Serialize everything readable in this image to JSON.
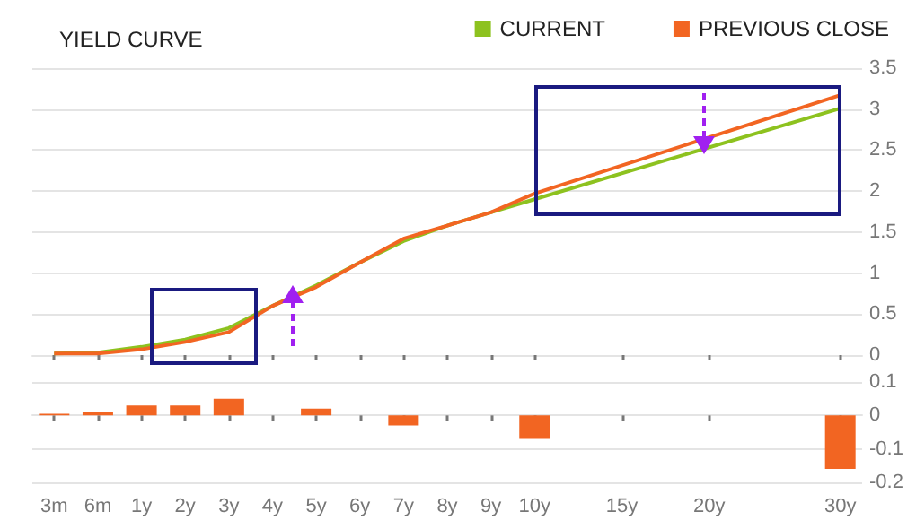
{
  "chart_data": [
    {
      "type": "line",
      "title": "YIELD CURVE",
      "categories": [
        null,
        null,
        null,
        null,
        null,
        null,
        null,
        null,
        null,
        null,
        null,
        null,
        null,
        null,
        null,
        null,
        null,
        null,
        null
      ],
      "series": [
        {
          "name": "CURRENT",
          "color": "#8dc21f",
          "values": [
            0.02,
            0.03,
            0.1,
            0.19,
            0.33,
            0.6,
            0.85,
            1.13,
            1.39,
            1.58,
            1.74,
            1.9,
            null,
            null,
            null,
            null,
            null,
            null,
            3.01
          ]
        },
        {
          "name": "PREVIOUS CLOSE",
          "color": "#f26522",
          "values": [
            0.02,
            0.02,
            0.07,
            0.16,
            0.28,
            0.6,
            0.83,
            1.13,
            1.42,
            1.58,
            1.74,
            1.97,
            null,
            null,
            null,
            null,
            null,
            null,
            3.17
          ]
        }
      ],
      "ylim": [
        0,
        3.5
      ],
      "yticks": [
        0,
        0.5,
        1,
        1.5,
        2,
        2.5,
        3,
        3.5
      ],
      "grid": "y",
      "legend": "top right",
      "marker": "none",
      "tick_labels": "y"
    },
    {
      "type": "bar",
      "categories": [
        "3m",
        "6m",
        "1y",
        "2y",
        "3y",
        "4y",
        "5y",
        "6y",
        "7y",
        "8y",
        "9y",
        "10y",
        null,
        "15y",
        null,
        "20y",
        null,
        null,
        "30y"
      ],
      "values": [
        0.005,
        0.01,
        0.03,
        0.03,
        0.05,
        null,
        0.02,
        null,
        -0.03,
        null,
        null,
        -0.07,
        null,
        null,
        null,
        null,
        null,
        null,
        -0.16
      ],
      "color": "#f26522",
      "ylim": [
        -0.2,
        0.1
      ],
      "yticks": [
        -0.2,
        -0.1,
        0,
        0.1
      ],
      "grid": "y"
    }
  ]
}
